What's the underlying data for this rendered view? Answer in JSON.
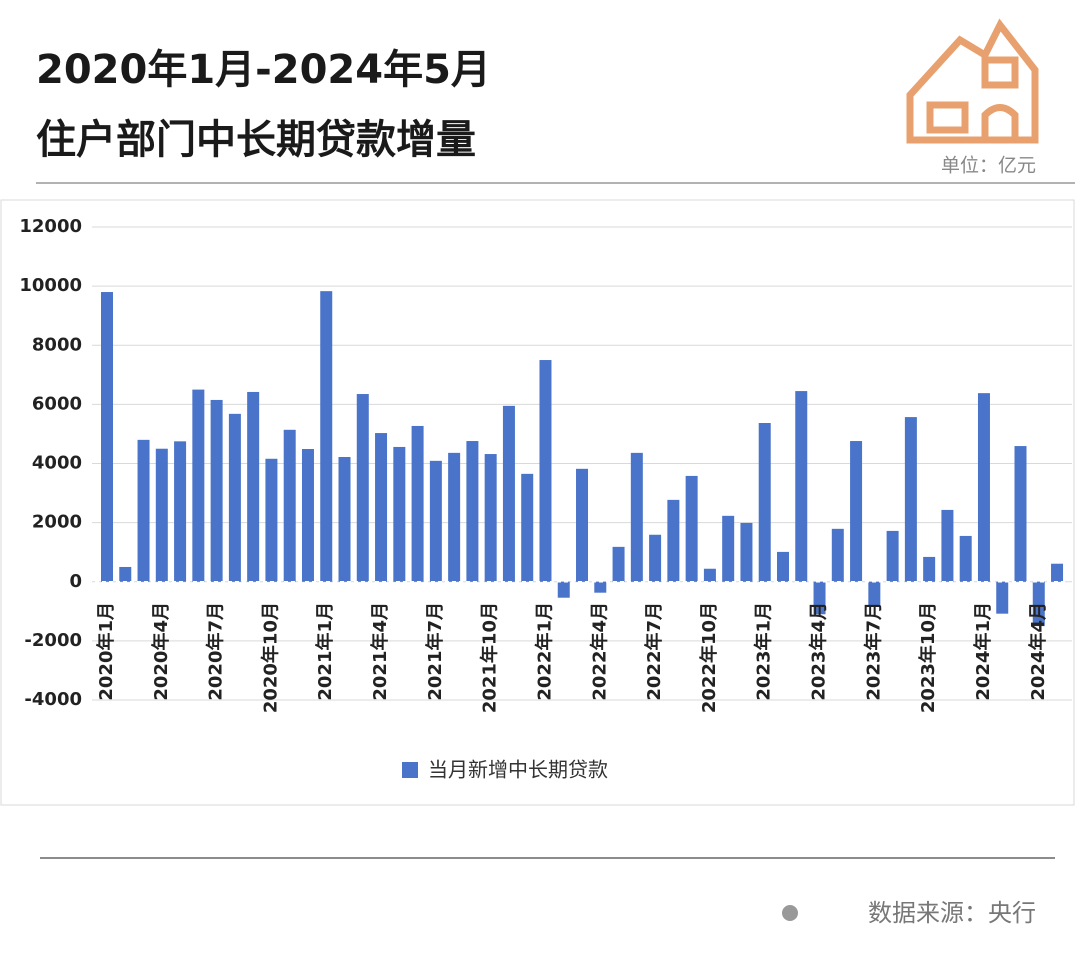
{
  "chart_data": {
    "type": "bar",
    "title": "2020年1月-2024年5月",
    "subtitle": "住户部门中长期贷款增量",
    "unit": "单位：亿元",
    "source": "数据来源：央行",
    "categories": [
      "2020年1月",
      null,
      null,
      "2020年4月",
      null,
      null,
      "2020年7月",
      null,
      null,
      "2020年10月",
      null,
      null,
      "2021年1月",
      null,
      null,
      "2021年4月",
      null,
      null,
      "2021年7月",
      null,
      null,
      "2021年10月",
      null,
      null,
      "2022年1月",
      null,
      null,
      "2022年4月",
      null,
      null,
      "2022年7月",
      null,
      null,
      "2022年10月",
      null,
      null,
      "2023年1月",
      null,
      null,
      "2023年4月",
      null,
      null,
      "2023年7月",
      null,
      null,
      "2023年10月",
      null,
      null,
      "2024年1月",
      null,
      null,
      "2024年4月",
      null
    ],
    "series": [
      {
        "name": "当月新增中长期贷款",
        "color": "#4a74c9",
        "values": [
          9800,
          500,
          4800,
          4500,
          4750,
          6500,
          6150,
          5680,
          6420,
          4160,
          5140,
          4490,
          9830,
          4220,
          6350,
          5030,
          4560,
          5270,
          4090,
          4360,
          4760,
          4320,
          5950,
          3650,
          7500,
          -540,
          3820,
          -370,
          1180,
          4360,
          1590,
          2770,
          3580,
          440,
          2230,
          1990,
          5370,
          1010,
          6450,
          -1100,
          1790,
          4760,
          -810,
          1720,
          5570,
          840,
          2430,
          1550,
          6380,
          -1080,
          4590,
          -1500,
          610
        ]
      }
    ],
    "ylim": [
      -4000,
      12000
    ],
    "yticks": [
      -4000,
      -2000,
      0,
      2000,
      4000,
      6000,
      8000,
      10000,
      12000
    ],
    "grid": true,
    "legend": "bottom"
  }
}
